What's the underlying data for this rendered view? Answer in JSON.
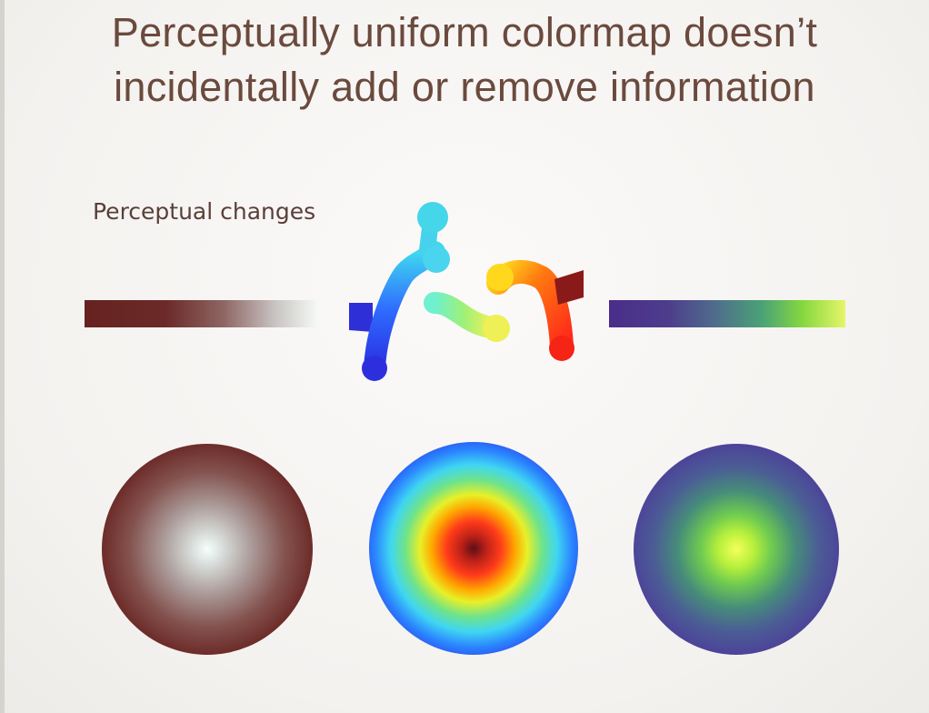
{
  "slide": {
    "title_line1": "Perceptually uniform colormap doesn’t",
    "title_line2": "incidentally add or remove information",
    "perceptual_label": "Perceptual changes"
  },
  "colormaps": [
    {
      "id": "red-white",
      "stops": [
        "#66221f",
        "#8e6664",
        "#f3f8f4"
      ]
    },
    {
      "id": "jet-like",
      "stops": [
        "#2a2fe6",
        "#3fd6f2",
        "#e8f028",
        "#ff3a1a",
        "#5c0f16"
      ]
    },
    {
      "id": "viridis-like",
      "stops": [
        "#4a2d8a",
        "#4aa376",
        "#e6f56a"
      ]
    }
  ],
  "colors": {
    "title_text": "#6b4a3e",
    "label_text": "#5a3f3a",
    "background": "#f7f5f3"
  }
}
